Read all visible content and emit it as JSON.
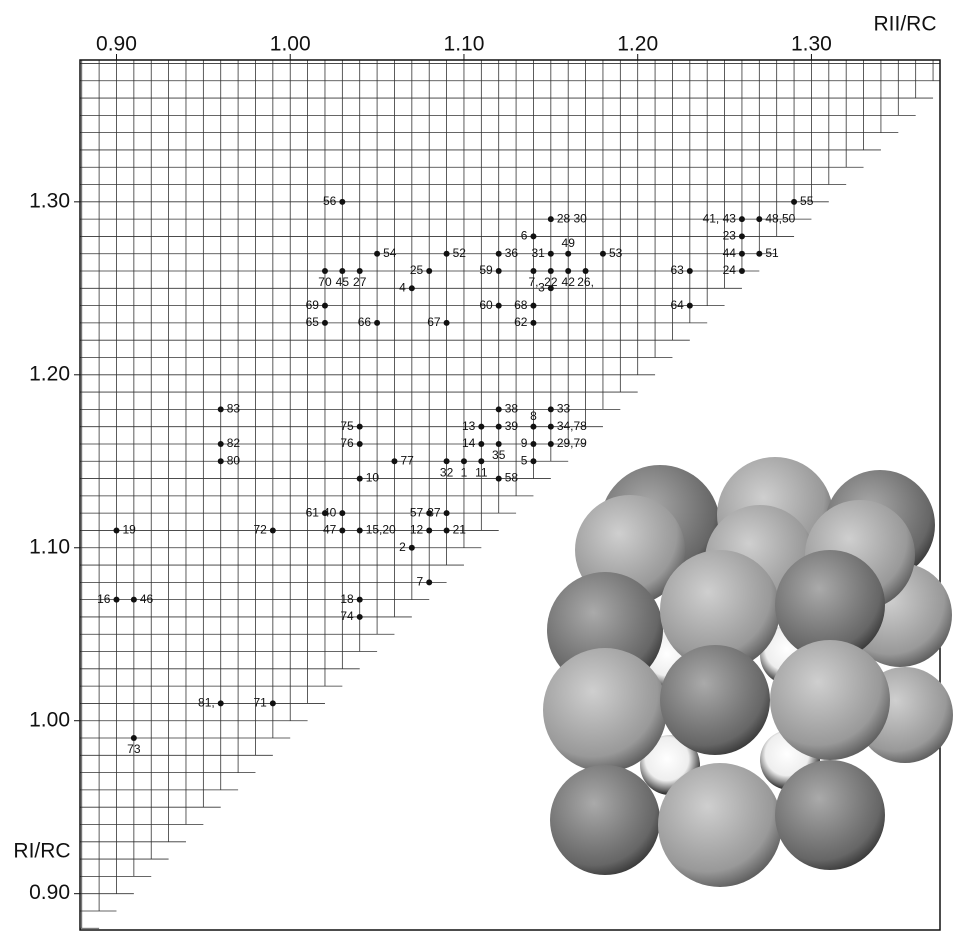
{
  "chart_data": {
    "type": "scatter",
    "x_label": "RII/RC",
    "y_label": "RI/RC",
    "xlim": [
      0.879,
      1.374
    ],
    "ylim": [
      0.879,
      1.382
    ],
    "xticks": [
      {
        "value": 0.9,
        "label": "0.90"
      },
      {
        "value": 1.0,
        "label": "1.00"
      },
      {
        "value": 1.1,
        "label": "1.10"
      },
      {
        "value": 1.2,
        "label": "1.20"
      },
      {
        "value": 1.3,
        "label": "1.30"
      }
    ],
    "yticks": [
      {
        "value": 0.9,
        "label": "0.90"
      },
      {
        "value": 1.0,
        "label": "1.00"
      },
      {
        "value": 1.1,
        "label": "1.10"
      },
      {
        "value": 1.2,
        "label": "1.20"
      },
      {
        "value": 1.3,
        "label": "1.30"
      }
    ],
    "grid": true,
    "color": "#111111",
    "point_labels": [
      "56",
      "28 30",
      "55",
      "41, 43",
      "48,50",
      "6",
      "23",
      "54",
      "52",
      "36",
      "31",
      "49",
      "53",
      "44",
      "51",
      "70",
      "45",
      "27",
      "25",
      "59",
      "7,",
      "22",
      "42",
      "26,",
      "63",
      "24",
      "4",
      "3",
      "69",
      "60",
      "68",
      "64",
      "65",
      "66",
      "67",
      "62",
      "83",
      "38",
      "33",
      "75",
      "13",
      "39",
      "8",
      "34,78",
      "82",
      "76",
      "14",
      "35",
      "9",
      "29,79",
      "80",
      "77",
      "32",
      "1",
      "11",
      "5",
      "10",
      "58",
      "61",
      "40",
      "57",
      "37",
      "19",
      "72",
      "47",
      "15,20",
      "12",
      "21",
      "2",
      "7",
      "16",
      "46",
      "18",
      "74",
      "81,",
      "71",
      "73"
    ],
    "x": [
      1.03,
      1.15,
      1.29,
      1.26,
      1.27,
      1.14,
      1.26,
      1.05,
      1.09,
      1.12,
      1.15,
      1.16,
      1.18,
      1.26,
      1.27,
      1.02,
      1.03,
      1.04,
      1.08,
      1.12,
      1.14,
      1.15,
      1.16,
      1.17,
      1.23,
      1.26,
      1.07,
      1.15,
      1.02,
      1.12,
      1.14,
      1.23,
      1.02,
      1.05,
      1.09,
      1.14,
      0.96,
      1.12,
      1.15,
      1.04,
      1.11,
      1.12,
      1.14,
      1.15,
      0.96,
      1.04,
      1.11,
      1.12,
      1.14,
      1.15,
      0.96,
      1.06,
      1.09,
      1.1,
      1.11,
      1.14,
      1.04,
      1.12,
      1.02,
      1.03,
      1.08,
      1.09,
      0.9,
      0.99,
      1.03,
      1.04,
      1.08,
      1.09,
      1.07,
      1.08,
      0.9,
      0.91,
      1.04,
      1.04,
      0.96,
      0.99,
      0.91
    ],
    "values": [
      1.3,
      1.29,
      1.3,
      1.29,
      1.29,
      1.28,
      1.28,
      1.27,
      1.27,
      1.27,
      1.27,
      1.27,
      1.27,
      1.27,
      1.27,
      1.26,
      1.26,
      1.26,
      1.26,
      1.26,
      1.26,
      1.26,
      1.26,
      1.26,
      1.26,
      1.26,
      1.25,
      1.25,
      1.24,
      1.24,
      1.24,
      1.24,
      1.23,
      1.23,
      1.23,
      1.23,
      1.18,
      1.18,
      1.18,
      1.17,
      1.17,
      1.17,
      1.17,
      1.17,
      1.16,
      1.16,
      1.16,
      1.16,
      1.16,
      1.16,
      1.15,
      1.15,
      1.15,
      1.15,
      1.15,
      1.15,
      1.14,
      1.14,
      1.12,
      1.12,
      1.12,
      1.12,
      1.11,
      1.11,
      1.11,
      1.11,
      1.11,
      1.11,
      1.1,
      1.08,
      1.07,
      1.07,
      1.07,
      1.06,
      1.01,
      1.01,
      0.99
    ]
  }
}
